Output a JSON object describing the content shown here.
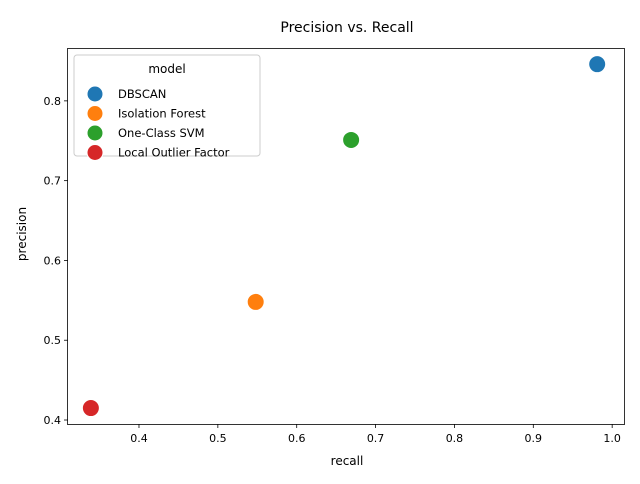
{
  "chart_data": {
    "type": "scatter",
    "title": "Precision vs. Recall",
    "xlabel": "recall",
    "ylabel": "precision",
    "xlim": [
      0.31,
      1.015
    ],
    "ylim": [
      0.395,
      0.865
    ],
    "xticks": [
      0.4,
      0.5,
      0.6,
      0.7,
      0.8,
      0.9,
      1.0
    ],
    "xtick_labels": [
      "0.4",
      "0.5",
      "0.6",
      "0.7",
      "0.8",
      "0.9",
      "1.0"
    ],
    "yticks": [
      0.4,
      0.5,
      0.6,
      0.7,
      0.8
    ],
    "ytick_labels": [
      "0.4",
      "0.5",
      "0.6",
      "0.7",
      "0.8"
    ],
    "grid": false,
    "legend": {
      "title": "model",
      "placement": "top-left"
    },
    "series": [
      {
        "name": "DBSCAN",
        "color": "#1f77b4",
        "x": [
          0.981
        ],
        "y": [
          0.846
        ]
      },
      {
        "name": "Isolation Forest",
        "color": "#ff7f0e",
        "x": [
          0.548
        ],
        "y": [
          0.548
        ]
      },
      {
        "name": "One-Class SVM",
        "color": "#2ca02c",
        "x": [
          0.669
        ],
        "y": [
          0.751
        ]
      },
      {
        "name": "Local Outlier Factor",
        "color": "#d62728",
        "x": [
          0.339
        ],
        "y": [
          0.415
        ]
      }
    ]
  }
}
